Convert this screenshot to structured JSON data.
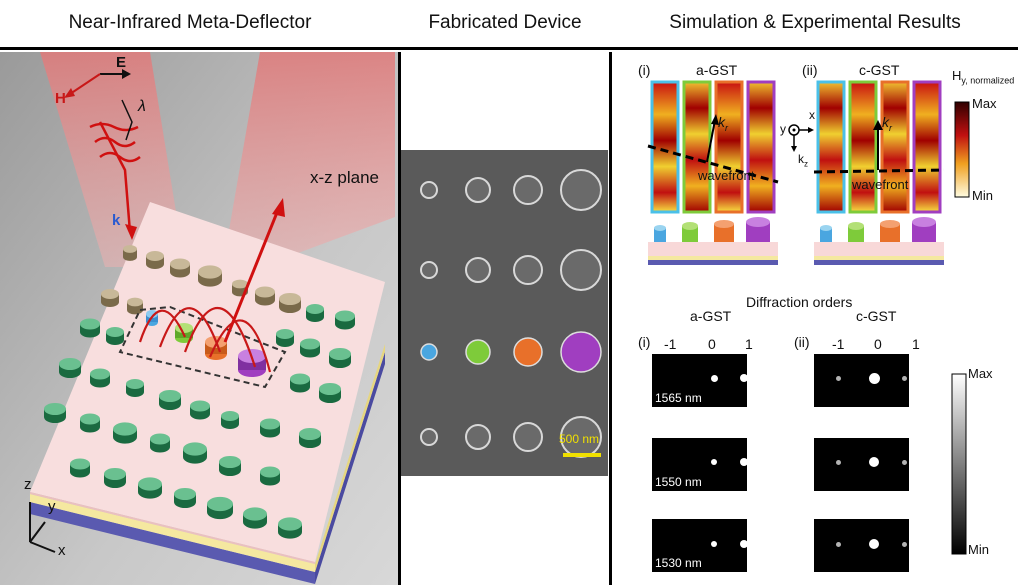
{
  "headers": {
    "left": "Near-Infrared Meta-Deflector",
    "middle": "Fabricated Device",
    "right": "Simulation & Experimental Results"
  },
  "left_panel": {
    "field_e": "E",
    "field_h": "H",
    "field_k": "k",
    "wavelength": "λ",
    "plane_label": "x-z plane",
    "axis_z": "z",
    "axis_y": "y",
    "axis_x": "x"
  },
  "middle_panel": {
    "scale_bar_label": "500 nm"
  },
  "right_panel": {
    "sim": {
      "panel_i": "(i)",
      "panel_ii": "(ii)",
      "title_a": "a-GST",
      "title_c": "c-GST",
      "kr": "k",
      "kr_sub": "r",
      "wavefront": "wavefront",
      "axis_x": "x",
      "axis_y": "y",
      "axis_kz": "k",
      "axis_kz_sub": "z",
      "colorbar_title": "H",
      "colorbar_sub": "y, normalized",
      "colorbar_max": "Max",
      "colorbar_min": "Min"
    },
    "exp": {
      "title": "Diffraction orders",
      "panel_i": "(i)",
      "panel_ii": "(ii)",
      "title_a": "a-GST",
      "title_c": "c-GST",
      "orders": [
        "-1",
        "0",
        "1"
      ],
      "wavelengths": [
        "1565 nm",
        "1550 nm",
        "1530 nm"
      ],
      "colorbar_max": "Max",
      "colorbar_min": "Min"
    }
  },
  "colors": {
    "cyan_pillar": "#4aa6e0",
    "green_pillar": "#7ecb3a",
    "orange_pillar": "#e8702a",
    "purple_pillar": "#a03ec0",
    "substrate": "#f6d8d8"
  }
}
